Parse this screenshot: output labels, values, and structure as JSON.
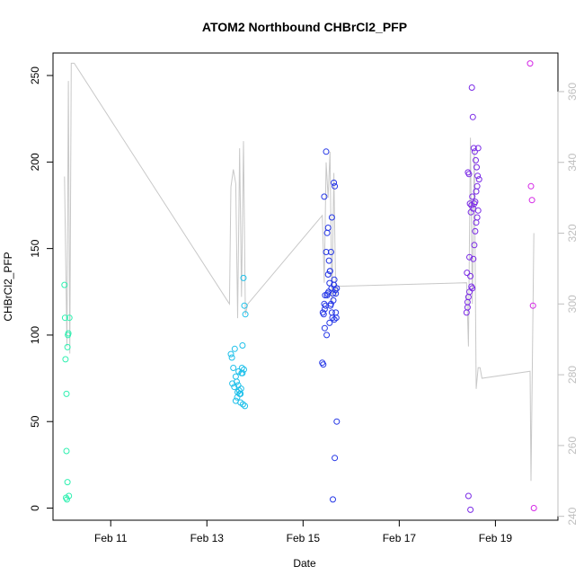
{
  "chart_data": {
    "type": "scatter",
    "title": "ATOM2 Northbound CHBrCl2_PFP",
    "xlabel": "Date",
    "ylabel": "CHBrCl2_PFP",
    "x_ticks": [
      "Feb 11",
      "Feb 13",
      "Feb 15",
      "Feb 17",
      "Feb 19"
    ],
    "x_tick_values": [
      11,
      13,
      15,
      17,
      19
    ],
    "xlim": [
      9.8,
      20.3
    ],
    "ylim": [
      -7,
      263
    ],
    "y_ticks": [
      0,
      50,
      100,
      150,
      200,
      250
    ],
    "y2lim": [
      238.9,
      370.9
    ],
    "y2_ticks": [
      240,
      260,
      280,
      300,
      320,
      340,
      360
    ],
    "y2_color": "#bfbfbf",
    "grid": false,
    "legend": "none",
    "colors": {
      "line": "#c8c8c8",
      "flight1": "#2ef0b0",
      "flight2": "#1ec0ea",
      "flight3": "#2436e6",
      "flight4": "#7a2ae6",
      "flight5": "#d426e6"
    },
    "line_series": {
      "x": [
        10.04,
        10.09,
        10.12,
        10.15,
        10.18,
        10.21,
        10.24,
        13.47,
        13.5,
        13.55,
        13.6,
        13.64,
        13.68,
        13.72,
        13.76,
        13.8,
        13.85,
        15.4,
        15.44,
        15.48,
        15.52,
        15.56,
        15.6,
        15.64,
        15.68,
        15.72,
        18.4,
        18.44,
        18.48,
        18.52,
        18.56,
        18.6,
        18.64,
        18.68,
        18.72,
        19.72,
        19.74,
        19.8
      ],
      "y": [
        336,
        288,
        363,
        286,
        368,
        368,
        368,
        300,
        333,
        338,
        334,
        296,
        344,
        302,
        346,
        297,
        300,
        325,
        306,
        340,
        330,
        343,
        300,
        337,
        302,
        305,
        306,
        288,
        347,
        300,
        343,
        276,
        282,
        282,
        279,
        281,
        250,
        320
      ]
    },
    "series": [
      {
        "x": [
          10.04,
          10.06,
          10.08,
          10.1,
          10.12,
          10.05,
          10.08,
          10.1,
          10.07,
          10.09,
          10.13,
          10.11,
          10.14
        ],
        "y": [
          129,
          86,
          66,
          93,
          101,
          110,
          33,
          15,
          6,
          5,
          7,
          100,
          110
        ]
      },
      {
        "x": [
          13.5,
          13.52,
          13.55,
          13.58,
          13.6,
          13.62,
          13.65,
          13.67,
          13.7,
          13.72,
          13.74,
          13.76,
          13.78,
          13.8,
          13.53,
          13.57,
          13.63,
          13.68,
          13.75,
          13.79,
          13.6,
          13.64,
          13.7,
          13.74,
          13.77,
          13.66,
          13.73,
          13.71
        ],
        "y": [
          89,
          87,
          81,
          92,
          76,
          73,
          71,
          68,
          66,
          78,
          78,
          133,
          117,
          112,
          72,
          70,
          64,
          66,
          60,
          59,
          62,
          67,
          61,
          94,
          80,
          79,
          81,
          69
        ]
      },
      {
        "x": [
          15.4,
          15.42,
          15.44,
          15.46,
          15.48,
          15.5,
          15.52,
          15.54,
          15.56,
          15.58,
          15.6,
          15.62,
          15.64,
          15.66,
          15.68,
          15.7,
          15.43,
          15.47,
          15.51,
          15.55,
          15.59,
          15.63,
          15.67,
          15.41,
          15.45,
          15.49,
          15.53,
          15.57,
          15.61,
          15.65,
          15.69,
          15.44,
          15.48,
          15.52,
          15.56,
          15.6,
          15.64,
          15.68,
          15.5,
          15.58,
          15.62,
          15.66,
          15.45,
          15.55,
          15.65,
          15.7
        ],
        "y": [
          84,
          83,
          118,
          123,
          206,
          159,
          162,
          143,
          137,
          148,
          168,
          124,
          188,
          186,
          113,
          127,
          112,
          117,
          124,
          130,
          127,
          120,
          126,
          113,
          104,
          100,
          125,
          117,
          110,
          109,
          110,
          180,
          148,
          135,
          137,
          113,
          129,
          124,
          123,
          118,
          5,
          29,
          115,
          107,
          132,
          50
        ]
      },
      {
        "x": [
          18.4,
          18.42,
          18.44,
          18.46,
          18.48,
          18.5,
          18.52,
          18.54,
          18.56,
          18.58,
          18.6,
          18.62,
          18.64,
          18.41,
          18.43,
          18.45,
          18.47,
          18.49,
          18.51,
          18.53,
          18.55,
          18.57,
          18.59,
          18.61,
          18.63,
          18.42,
          18.46,
          18.5,
          18.54,
          18.58,
          18.62,
          18.44,
          18.48,
          18.52,
          18.56,
          18.6,
          18.64,
          18.66
        ],
        "y": [
          113,
          116,
          122,
          125,
          134,
          128,
          127,
          144,
          152,
          160,
          165,
          168,
          172,
          136,
          194,
          193,
          176,
          171,
          243,
          226,
          208,
          206,
          201,
          197,
          192,
          119,
          145,
          175,
          173,
          177,
          186,
          7,
          -1,
          180,
          176,
          183,
          208,
          190
        ]
      },
      {
        "x": [
          19.72,
          19.74,
          19.76,
          19.78,
          19.8
        ],
        "y": [
          257,
          186,
          178,
          117,
          0
        ]
      }
    ]
  }
}
